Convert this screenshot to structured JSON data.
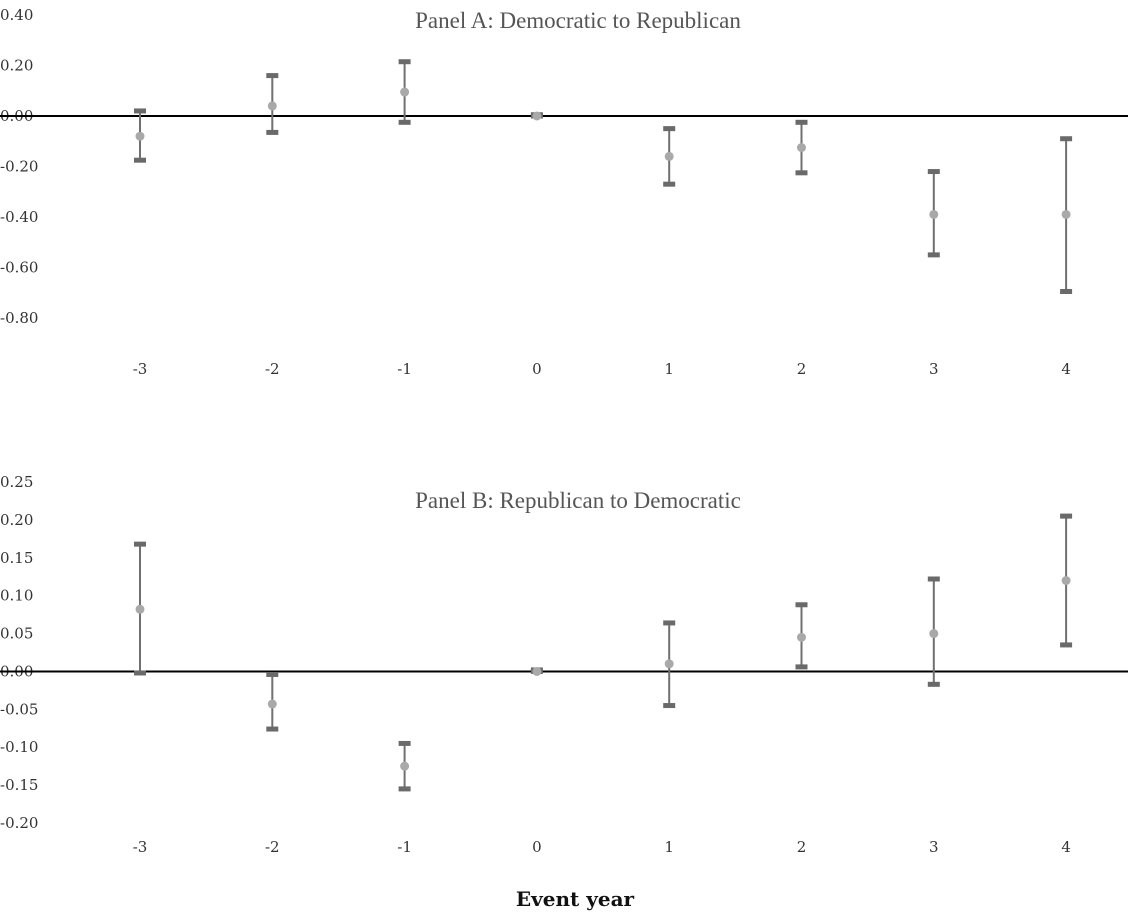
{
  "xlabel": "Event year",
  "chart_data": [
    {
      "type": "scatter",
      "title": "Panel A: Democratic to Republican",
      "ylim": [
        -0.8,
        0.4
      ],
      "yticks": [
        "0.40",
        "0.20",
        "0.00",
        "-0.20",
        "-0.40",
        "-0.60",
        "-0.80"
      ],
      "ytick_values": [
        0.4,
        0.2,
        0.0,
        -0.2,
        -0.4,
        -0.6,
        -0.8
      ],
      "x": [
        "-3",
        "-2",
        "-1",
        "0",
        "1",
        "2",
        "3",
        "4"
      ],
      "series": [
        {
          "estimate": [
            -0.08,
            0.04,
            0.095,
            0.0,
            -0.16,
            -0.125,
            -0.39,
            -0.39
          ],
          "ci_low": [
            -0.175,
            -0.065,
            -0.025,
            0.0,
            -0.27,
            -0.225,
            -0.55,
            -0.695
          ],
          "ci_high": [
            0.02,
            0.16,
            0.215,
            0.005,
            -0.05,
            -0.025,
            -0.22,
            -0.09
          ]
        }
      ]
    },
    {
      "type": "scatter",
      "title": "Panel B: Republican to Democratic",
      "ylim": [
        -0.2,
        0.25
      ],
      "yticks": [
        "0.25",
        "0.20",
        "0.15",
        "0.10",
        "0.05",
        "0.00",
        "-0.05",
        "-0.10",
        "-0.15",
        "-0.20"
      ],
      "ytick_values": [
        0.25,
        0.2,
        0.15,
        0.1,
        0.05,
        0.0,
        -0.05,
        -0.1,
        -0.15,
        -0.2
      ],
      "x": [
        "-3",
        "-2",
        "-1",
        "0",
        "1",
        "2",
        "3",
        "4"
      ],
      "series": [
        {
          "estimate": [
            0.082,
            -0.043,
            -0.125,
            0.0,
            0.01,
            0.045,
            0.05,
            0.12
          ],
          "ci_low": [
            -0.002,
            -0.076,
            -0.155,
            0.0,
            -0.045,
            0.006,
            -0.017,
            0.035
          ],
          "ci_high": [
            0.168,
            -0.004,
            -0.095,
            0.002,
            0.064,
            0.088,
            0.122,
            0.205
          ]
        }
      ]
    }
  ]
}
